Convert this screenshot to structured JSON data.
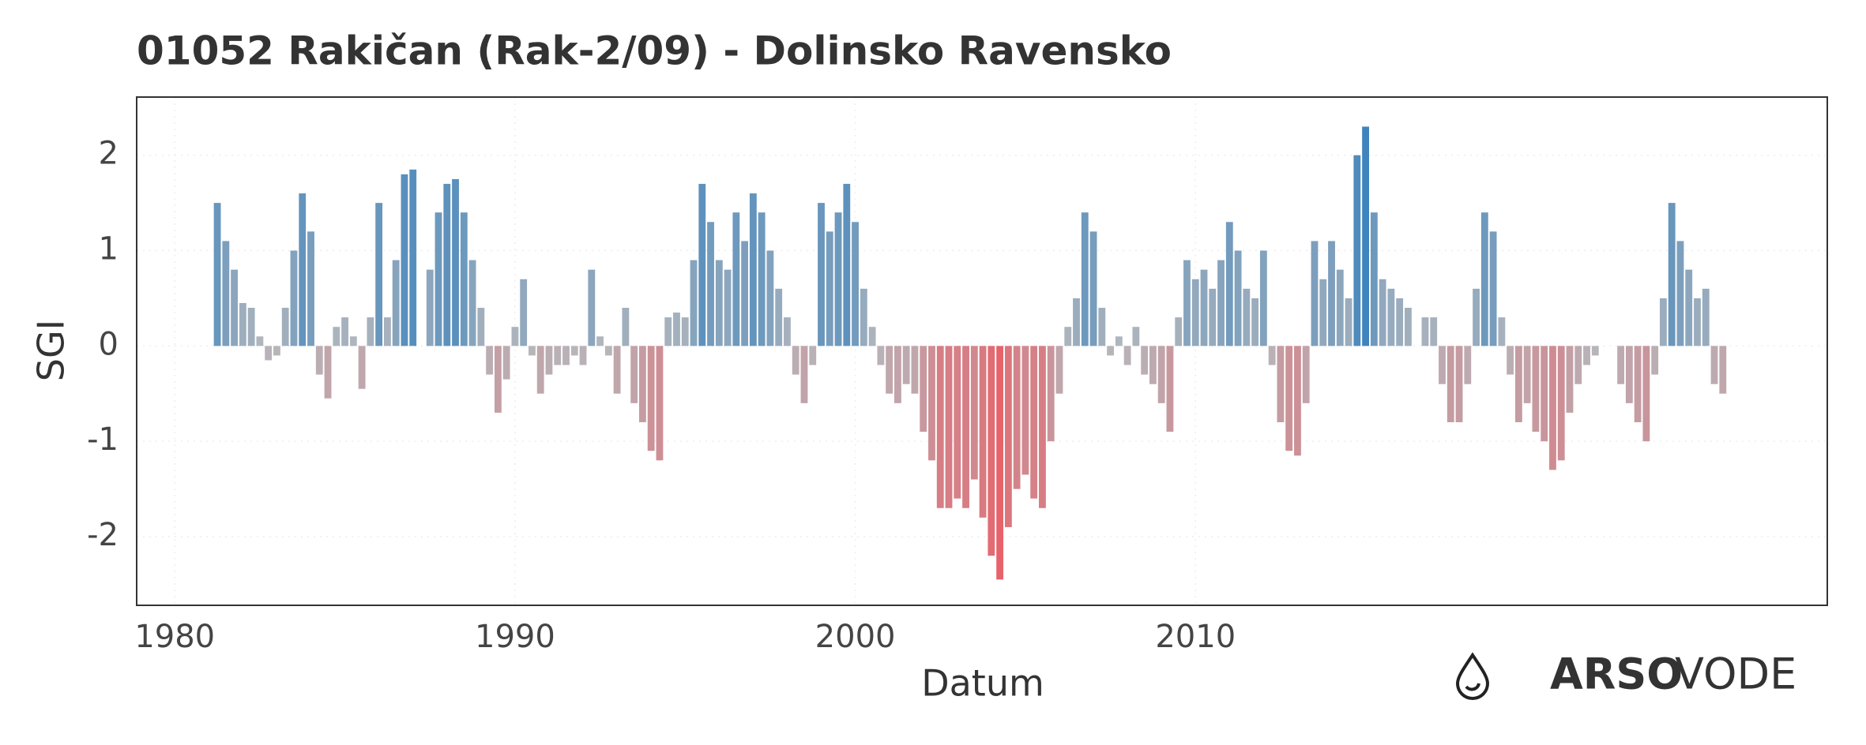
{
  "chart_data": {
    "type": "bar",
    "title": "01052 Rakičan (Rak-2/09) - Dolinsko Ravensko",
    "x_label": "Datum",
    "y_label": "SGI",
    "logo": {
      "bold": "ARSO",
      "light": "VODE"
    },
    "colors": {
      "positive": "#2a7bbd",
      "neutral": "#b5b8bd",
      "negative": "#ec5a62"
    },
    "grid": true,
    "xlim": [
      1978.88,
      2028.57
    ],
    "xticks": [
      1980,
      1990,
      2000,
      2010
    ],
    "ylim": [
      -2.72,
      2.61
    ],
    "yticks": [
      -2,
      -1,
      0,
      1,
      2
    ],
    "x": [
      1981.25,
      1981.5,
      1981.75,
      1982,
      1982.25,
      1982.5,
      1982.75,
      1983,
      1983.25,
      1983.5,
      1983.75,
      1984,
      1984.25,
      1984.5,
      1984.75,
      1985,
      1985.25,
      1985.5,
      1985.75,
      1986,
      1986.25,
      1986.5,
      1986.75,
      1987,
      1987.25,
      1987.5,
      1987.75,
      1988,
      1988.25,
      1988.5,
      1988.75,
      1989,
      1989.25,
      1989.5,
      1989.75,
      1990,
      1990.25,
      1990.5,
      1990.75,
      1991,
      1991.25,
      1991.5,
      1991.75,
      1992,
      1992.25,
      1992.5,
      1992.75,
      1993,
      1993.25,
      1993.5,
      1993.75,
      1994,
      1994.25,
      1994.5,
      1994.75,
      1995,
      1995.25,
      1995.5,
      1995.75,
      1996,
      1996.25,
      1996.5,
      1996.75,
      1997,
      1997.25,
      1997.5,
      1997.75,
      1998,
      1998.25,
      1998.5,
      1998.75,
      1999,
      1999.25,
      1999.5,
      1999.75,
      2000,
      2000.25,
      2000.5,
      2000.75,
      2001,
      2001.25,
      2001.5,
      2001.75,
      2002,
      2002.25,
      2002.5,
      2002.75,
      2003,
      2003.25,
      2003.5,
      2003.75,
      2004,
      2004.25,
      2004.5,
      2004.75,
      2005,
      2005.25,
      2005.5,
      2005.75,
      2006,
      2006.25,
      2006.5,
      2006.75,
      2007,
      2007.25,
      2007.5,
      2007.75,
      2008,
      2008.25,
      2008.5,
      2008.75,
      2009,
      2009.25,
      2009.5,
      2009.75,
      2010,
      2010.25,
      2010.5,
      2010.75,
      2011,
      2011.25,
      2011.5,
      2011.75,
      2012,
      2012.25,
      2012.5,
      2012.75,
      2013,
      2013.25,
      2013.5,
      2013.75,
      2014,
      2014.25,
      2014.5,
      2014.75,
      2015,
      2015.25,
      2015.5,
      2015.75,
      2016,
      2016.25,
      2016.5,
      2016.75,
      2017,
      2017.25,
      2017.5,
      2017.75,
      2018,
      2018.25,
      2018.5,
      2018.75,
      2019,
      2019.25,
      2019.5,
      2019.75,
      2020,
      2020.25,
      2020.5,
      2020.75,
      2021,
      2021.25,
      2021.5,
      2021.75,
      2022,
      2022.25,
      2022.5,
      2022.75,
      2023,
      2023.25,
      2023.5,
      2023.75,
      2024,
      2024.25,
      2024.5,
      2024.75,
      2025,
      2025.25,
      2025.5
    ],
    "values": [
      1.5,
      1.1,
      0.8,
      0.45,
      0.4,
      0.1,
      -0.15,
      -0.1,
      0.4,
      1.0,
      1.6,
      1.2,
      -0.3,
      -0.55,
      0.2,
      0.3,
      0.1,
      -0.45,
      0.3,
      1.5,
      0.3,
      0.9,
      1.8,
      1.85,
      0.0,
      0.8,
      1.4,
      1.7,
      1.75,
      1.4,
      0.9,
      0.4,
      -0.3,
      -0.7,
      -0.35,
      0.2,
      0.7,
      -0.1,
      -0.5,
      -0.3,
      -0.2,
      -0.2,
      -0.1,
      -0.2,
      0.8,
      0.1,
      -0.1,
      -0.5,
      0.4,
      -0.6,
      -0.8,
      -1.1,
      -1.2,
      0.3,
      0.35,
      0.3,
      0.9,
      1.7,
      1.3,
      0.9,
      0.8,
      1.4,
      1.1,
      1.6,
      1.4,
      1.0,
      0.6,
      0.3,
      -0.3,
      -0.6,
      -0.2,
      1.5,
      1.2,
      1.4,
      1.7,
      1.3,
      0.6,
      0.2,
      -0.2,
      -0.5,
      -0.6,
      -0.4,
      -0.5,
      -0.9,
      -1.2,
      -1.7,
      -1.7,
      -1.6,
      -1.7,
      -1.4,
      -1.8,
      -2.2,
      -2.45,
      -1.9,
      -1.5,
      -1.35,
      -1.6,
      -1.7,
      -1.0,
      -0.5,
      0.2,
      0.5,
      1.4,
      1.2,
      0.4,
      -0.1,
      0.1,
      -0.2,
      0.2,
      -0.3,
      -0.4,
      -0.6,
      -0.9,
      0.3,
      0.9,
      0.7,
      0.8,
      0.6,
      0.9,
      1.3,
      1.0,
      0.6,
      0.5,
      1.0,
      -0.2,
      -0.8,
      -1.1,
      -1.15,
      -0.6,
      1.1,
      0.7,
      1.1,
      0.8,
      0.5,
      2.0,
      2.3,
      1.4,
      0.7,
      0.6,
      0.5,
      0.4,
      0.0,
      0.3,
      0.3,
      -0.4,
      -0.8,
      -0.8,
      -0.4,
      0.6,
      1.4,
      1.2,
      0.3,
      -0.3,
      -0.8,
      -0.6,
      -0.9,
      -1.0,
      -1.3,
      -1.2,
      -0.7,
      -0.4,
      -0.2,
      -0.1,
      0.0,
      0.0,
      -0.4,
      -0.6,
      -0.8,
      -1.0,
      -0.3,
      0.5,
      1.5,
      1.1,
      0.8,
      0.5,
      0.6,
      -0.4,
      -0.5
    ]
  }
}
